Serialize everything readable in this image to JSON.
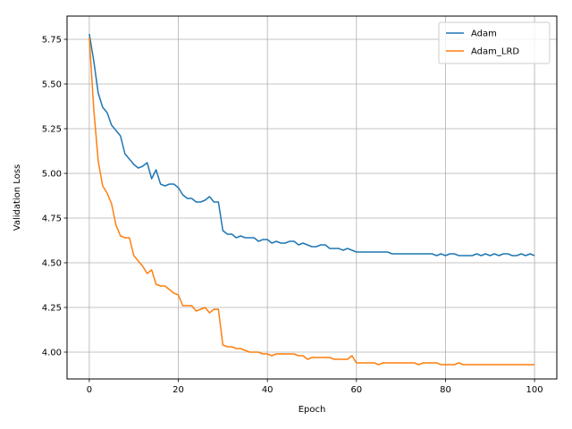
{
  "chart_data": {
    "type": "line",
    "xlabel": "Epoch",
    "ylabel": "Validation Loss",
    "xlim": [
      -5,
      105
    ],
    "ylim": [
      3.85,
      5.88
    ],
    "xticks": [
      0,
      20,
      40,
      60,
      80,
      100
    ],
    "yticks": [
      4.0,
      4.25,
      4.5,
      4.75,
      5.0,
      5.25,
      5.5,
      5.75
    ],
    "xtick_labels": [
      "0",
      "20",
      "40",
      "60",
      "80",
      "100"
    ],
    "ytick_labels": [
      "4.00",
      "4.25",
      "4.50",
      "4.75",
      "5.00",
      "5.25",
      "5.50",
      "5.75"
    ],
    "grid": true,
    "legend_position": "top-right",
    "series": [
      {
        "name": "Adam",
        "color": "#1f77b4",
        "values": [
          5.78,
          5.63,
          5.45,
          5.37,
          5.34,
          5.27,
          5.24,
          5.21,
          5.11,
          5.08,
          5.05,
          5.03,
          5.04,
          5.06,
          4.97,
          5.02,
          4.94,
          4.93,
          4.94,
          4.94,
          4.92,
          4.88,
          4.86,
          4.86,
          4.84,
          4.84,
          4.85,
          4.87,
          4.84,
          4.84,
          4.68,
          4.66,
          4.66,
          4.64,
          4.65,
          4.64,
          4.64,
          4.64,
          4.62,
          4.63,
          4.63,
          4.61,
          4.62,
          4.61,
          4.61,
          4.62,
          4.62,
          4.6,
          4.61,
          4.6,
          4.59,
          4.59,
          4.6,
          4.6,
          4.58,
          4.58,
          4.58,
          4.57,
          4.58,
          4.57,
          4.56,
          4.56,
          4.56,
          4.56,
          4.56,
          4.56,
          4.56,
          4.56,
          4.55,
          4.55,
          4.55,
          4.55,
          4.55,
          4.55,
          4.55,
          4.55,
          4.55,
          4.55,
          4.54,
          4.55,
          4.54,
          4.55,
          4.55,
          4.54,
          4.54,
          4.54,
          4.54,
          4.55,
          4.54,
          4.55,
          4.54,
          4.55,
          4.54,
          4.55,
          4.55,
          4.54,
          4.54,
          4.55,
          4.54,
          4.55,
          4.54
        ]
      },
      {
        "name": "Adam_LRD",
        "color": "#ff7f0e",
        "values": [
          5.76,
          5.36,
          5.07,
          4.93,
          4.89,
          4.83,
          4.71,
          4.65,
          4.64,
          4.64,
          4.54,
          4.51,
          4.48,
          4.44,
          4.46,
          4.38,
          4.37,
          4.37,
          4.35,
          4.33,
          4.32,
          4.26,
          4.26,
          4.26,
          4.23,
          4.24,
          4.25,
          4.22,
          4.24,
          4.24,
          4.04,
          4.03,
          4.03,
          4.02,
          4.02,
          4.01,
          4.0,
          4.0,
          4.0,
          3.99,
          3.99,
          3.98,
          3.99,
          3.99,
          3.99,
          3.99,
          3.99,
          3.98,
          3.98,
          3.96,
          3.97,
          3.97,
          3.97,
          3.97,
          3.97,
          3.96,
          3.96,
          3.96,
          3.96,
          3.98,
          3.94,
          3.94,
          3.94,
          3.94,
          3.94,
          3.93,
          3.94,
          3.94,
          3.94,
          3.94,
          3.94,
          3.94,
          3.94,
          3.94,
          3.93,
          3.94,
          3.94,
          3.94,
          3.94,
          3.93,
          3.93,
          3.93,
          3.93,
          3.94,
          3.93,
          3.93,
          3.93,
          3.93,
          3.93,
          3.93,
          3.93,
          3.93,
          3.93,
          3.93,
          3.93,
          3.93,
          3.93,
          3.93,
          3.93,
          3.93,
          3.93
        ]
      }
    ]
  }
}
